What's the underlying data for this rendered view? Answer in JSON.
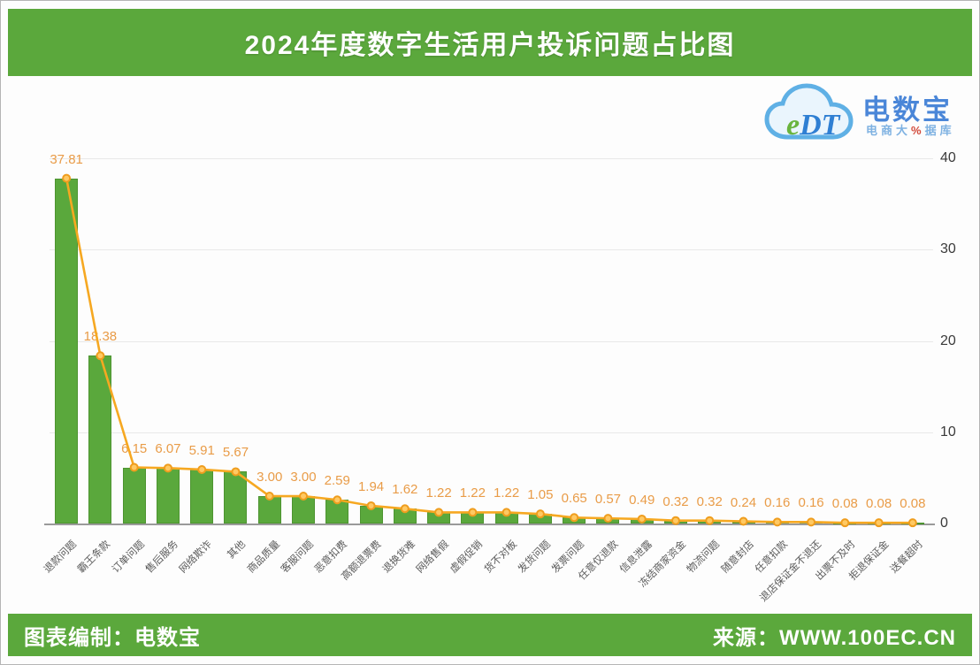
{
  "header": {
    "title": "2024年度数字生活用户投诉问题占比图"
  },
  "logo": {
    "cloud_icon": "cloud",
    "mark_text": "eDT",
    "mark_e": "e",
    "mark_dt": "DT",
    "name": "电数宝",
    "subtitle_prefix": "电商大",
    "subtitle_mark": "%",
    "subtitle_suffix": "据库"
  },
  "footer": {
    "left": "图表编制：电数宝",
    "right": "来源：WWW.100EC.CN"
  },
  "colors": {
    "band_green": "#5ba83c",
    "bar_green": "#5aa83c",
    "line_orange": "#f6a821",
    "marker_fill": "#ffc963",
    "marker_stroke": "#ef9d1e",
    "value_label_orange": "#e99c48",
    "logo_blue": "#4a86d8"
  },
  "chart_data": {
    "type": "bar",
    "overlay": "line",
    "title": "2024年度数字生活用户投诉问题占比图",
    "xlabel": "",
    "ylabel": "",
    "ylim": [
      0,
      40
    ],
    "yticks": [
      0,
      10,
      20,
      30,
      40
    ],
    "grid": true,
    "axis_side": "right",
    "categories": [
      "退款问题",
      "霸王条款",
      "订单问题",
      "售后服务",
      "网络欺诈",
      "其他",
      "商品质量",
      "客服问题",
      "恶意扣费",
      "高额退票费",
      "退换货难",
      "网络售假",
      "虚假促销",
      "货不对板",
      "发货问题",
      "发票问题",
      "任意仅退款",
      "信息泄露",
      "冻结商家资金",
      "物流问题",
      "随意封店",
      "任意扣款",
      "退店保证金不退还",
      "出票不及时",
      "拒退保证金",
      "送餐超时"
    ],
    "values": [
      37.81,
      18.38,
      6.15,
      6.07,
      5.91,
      5.67,
      3.0,
      3.0,
      2.59,
      1.94,
      1.62,
      1.22,
      1.22,
      1.22,
      1.05,
      0.65,
      0.57,
      0.49,
      0.32,
      0.32,
      0.24,
      0.16,
      0.16,
      0.08,
      0.08,
      0.08
    ]
  }
}
